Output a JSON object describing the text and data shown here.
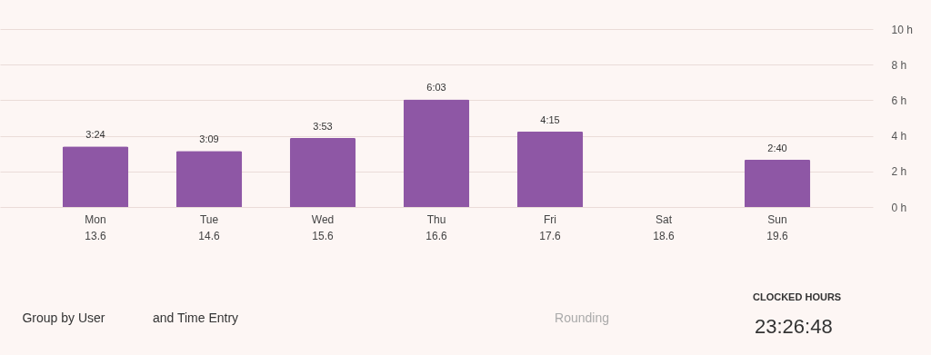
{
  "chart_data": {
    "type": "bar",
    "categories": [
      "Mon\n13.6",
      "Tue\n14.6",
      "Wed\n15.6",
      "Thu\n16.6",
      "Fri\n17.6",
      "Sat\n18.6",
      "Sun\n19.6"
    ],
    "values": [
      3.4,
      3.15,
      3.883,
      6.05,
      4.25,
      null,
      2.667
    ],
    "value_labels": [
      "3:24",
      "3:09",
      "3:53",
      "6:03",
      "4:15",
      null,
      "2:40"
    ],
    "color": "#8e57a5",
    "ylim": [
      0,
      10
    ],
    "yticks": [
      {
        "value": 0,
        "label": "0 h"
      },
      {
        "value": 2,
        "label": "2 h"
      },
      {
        "value": 4,
        "label": "4 h"
      },
      {
        "value": 6,
        "label": "6 h"
      },
      {
        "value": 8,
        "label": "8 h"
      },
      {
        "value": 10,
        "label": "10 h"
      }
    ],
    "grid": "y",
    "annotations": [
      "Group by User",
      "and Time Entry",
      "Rounding",
      "CLOCKED HOURS",
      "23:26:48"
    ]
  }
}
